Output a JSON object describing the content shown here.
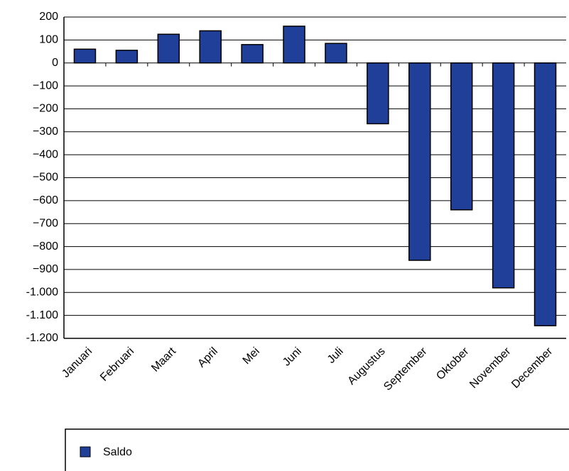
{
  "chart_data": {
    "type": "bar",
    "categories": [
      "Januari",
      "Februari",
      "Maart",
      "April",
      "Mei",
      "Juni",
      "Juli",
      "Augustus",
      "September",
      "Oktober",
      "November",
      "December"
    ],
    "series": [
      {
        "name": "Saldo",
        "color": "#1f3f99",
        "values": [
          60,
          55,
          125,
          140,
          80,
          160,
          85,
          -265,
          -860,
          -640,
          -980,
          -1145
        ]
      }
    ],
    "ylim": [
      -1200,
      200
    ],
    "yticks": [
      200,
      100,
      0,
      {
        "value": -100,
        "label": "−100"
      },
      {
        "value": -200,
        "label": "−200"
      },
      {
        "value": -300,
        "label": "−300"
      },
      {
        "value": -400,
        "label": "−400"
      },
      {
        "value": -500,
        "label": "−500"
      },
      {
        "value": -600,
        "label": "−600"
      },
      {
        "value": -700,
        "label": "−700"
      },
      {
        "value": -800,
        "label": "−800"
      },
      {
        "value": -900,
        "label": "−900"
      },
      {
        "value": -1000,
        "label": "-1.000"
      },
      {
        "value": -1100,
        "label": "-1.100"
      },
      {
        "value": -1200,
        "label": "-1.200"
      }
    ],
    "grid": true
  }
}
